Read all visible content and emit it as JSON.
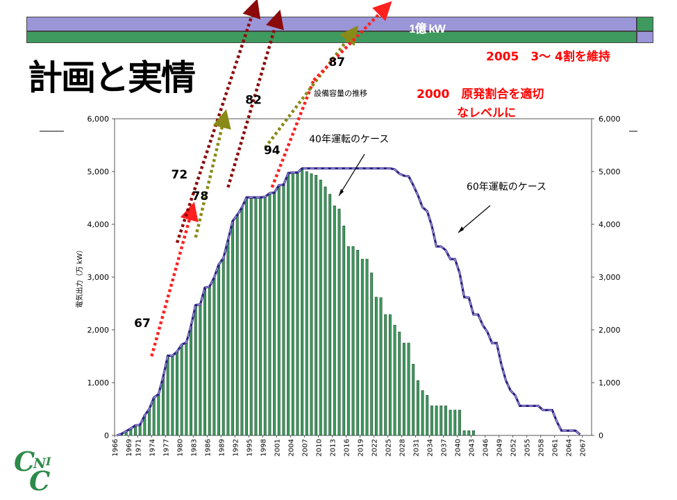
{
  "header": {
    "scale_label": "1億 kW",
    "title": "計画と実情",
    "note_2005": "2005　3～ 4割を維持",
    "note_2000_line1": "2000　原発割合を適切",
    "note_2000_line2": "なレベルに",
    "subtitle": "設備容量の推移"
  },
  "colors": {
    "purple_band": "#9b96d8",
    "green_band": "#3f9a5f",
    "bar_fill": "#3f9a5f",
    "line_60yr": "#2b1f80",
    "line_dash": "#9b96d8",
    "note_red": "#ff0000",
    "plan_red": "#ff2020",
    "plan_darkred": "#8b0a0a",
    "plan_olive": "#8a8a18"
  },
  "chart_data": {
    "type": "bar",
    "title": "設備容量の推移",
    "ylabel": "電気出力（万 kW）",
    "ylim": [
      0,
      6000
    ],
    "yticks": [
      "0",
      "1,000",
      "2,000",
      "3,000",
      "4,000",
      "5,000",
      "6,000"
    ],
    "x_start": 1966,
    "x_end": 2069,
    "xtick_labels": [
      "1966",
      "1969",
      "1971",
      "1974",
      "1977",
      "1980",
      "1983",
      "1986",
      "1989",
      "1992",
      "1995",
      "1998",
      "2001",
      "2004",
      "2007",
      "2010",
      "2013",
      "2016",
      "2019",
      "2022",
      "2025",
      "2028",
      "2031",
      "2034",
      "2037",
      "2040",
      "2043",
      "2046",
      "2049",
      "2052",
      "2055",
      "2058",
      "2061",
      "2064",
      "2067"
    ],
    "series_40yr": {
      "name": "40年運転のケース",
      "values": [
        0,
        30,
        80,
        130,
        190,
        200,
        380,
        500,
        720,
        780,
        1110,
        1510,
        1510,
        1590,
        1720,
        1760,
        2070,
        2470,
        2480,
        2800,
        2820,
        2990,
        3240,
        3360,
        3700,
        4060,
        4180,
        4320,
        4510,
        4510,
        4510,
        4510,
        4520,
        4590,
        4600,
        4740,
        4750,
        4970,
        4980,
        4980,
        5060,
        5000,
        4960,
        4930,
        4840,
        4710,
        4570,
        4350,
        4290,
        3970,
        3580,
        3580,
        3510,
        3340,
        3340,
        3080,
        2620,
        2610,
        2290,
        2290,
        2090,
        1960,
        1750,
        1750,
        1350,
        1040,
        850,
        760,
        560,
        560,
        560,
        560,
        480,
        480,
        480,
        90,
        90,
        90
      ]
    },
    "series_60yr": {
      "name": "60年運転のケース",
      "start": 1966,
      "end": 2068,
      "values": [
        0,
        30,
        80,
        130,
        190,
        200,
        380,
        500,
        720,
        780,
        1110,
        1510,
        1510,
        1590,
        1720,
        1760,
        2070,
        2470,
        2480,
        2800,
        2820,
        2990,
        3240,
        3360,
        3700,
        4060,
        4180,
        4320,
        4510,
        4510,
        4510,
        4510,
        4520,
        4590,
        4600,
        4740,
        4750,
        4970,
        4980,
        4980,
        5060,
        5060,
        5060,
        5060,
        5060,
        5060,
        5060,
        5060,
        5060,
        5060,
        5060,
        5060,
        5060,
        5060,
        5060,
        5060,
        5060,
        5060,
        5060,
        5060,
        5040,
        4960,
        4920,
        4910,
        4740,
        4550,
        4320,
        4250,
        3970,
        3580,
        3580,
        3510,
        3340,
        3340,
        3080,
        2620,
        2610,
        2290,
        2290,
        2090,
        1960,
        1750,
        1750,
        1350,
        1040,
        850,
        760,
        560,
        560,
        560,
        560,
        560,
        480,
        480,
        480,
        260,
        90,
        90,
        90,
        90,
        20
      ]
    },
    "annotations": [
      {
        "text": "40年運転のケース",
        "x": 2008,
        "y": 5550
      },
      {
        "text": "60年運転のケース",
        "x": 2042,
        "y": 4650
      },
      {
        "text": "67",
        "x": 1972,
        "y": 2050
      },
      {
        "text": "72",
        "x": 1980,
        "y": 4870
      },
      {
        "text": "78",
        "x": 1984.5,
        "y": 4460
      },
      {
        "text": "82",
        "x": 1996,
        "y": 6280
      },
      {
        "text": "94",
        "x": 2000,
        "y": 5330
      },
      {
        "text": "87",
        "x": 2014,
        "y": 7000
      }
    ],
    "plan_lines": [
      {
        "label": "67",
        "color": "plan_red",
        "x0": 1974,
        "y0": 1500,
        "x1": 1982.5,
        "y1": 4200
      },
      {
        "label": "72",
        "color": "plan_darkred",
        "x0": 1979.5,
        "y0": 3650,
        "x1": 1996,
        "y1": 8050
      },
      {
        "label": "78",
        "color": "plan_olive",
        "x0": 1983.5,
        "y0": 3750,
        "x1": 1989.5,
        "y1": 5950
      },
      {
        "label": "82",
        "color": "plan_darkred",
        "x0": 1990.5,
        "y0": 4700,
        "x1": 2001,
        "y1": 7840
      },
      {
        "label": "94",
        "color": "plan_red",
        "x0": 2000,
        "y0": 4700,
        "x1": 2009,
        "y1": 6730
      },
      {
        "label": "87",
        "color": "plan_olive",
        "x0": 1998.5,
        "y0": 5450,
        "x1": 2017,
        "y1": 7580
      },
      {
        "label": "2000",
        "color": "plan_red",
        "x0": 2009,
        "y0": 6730,
        "x1": 2024,
        "y1": 8060
      }
    ]
  }
}
